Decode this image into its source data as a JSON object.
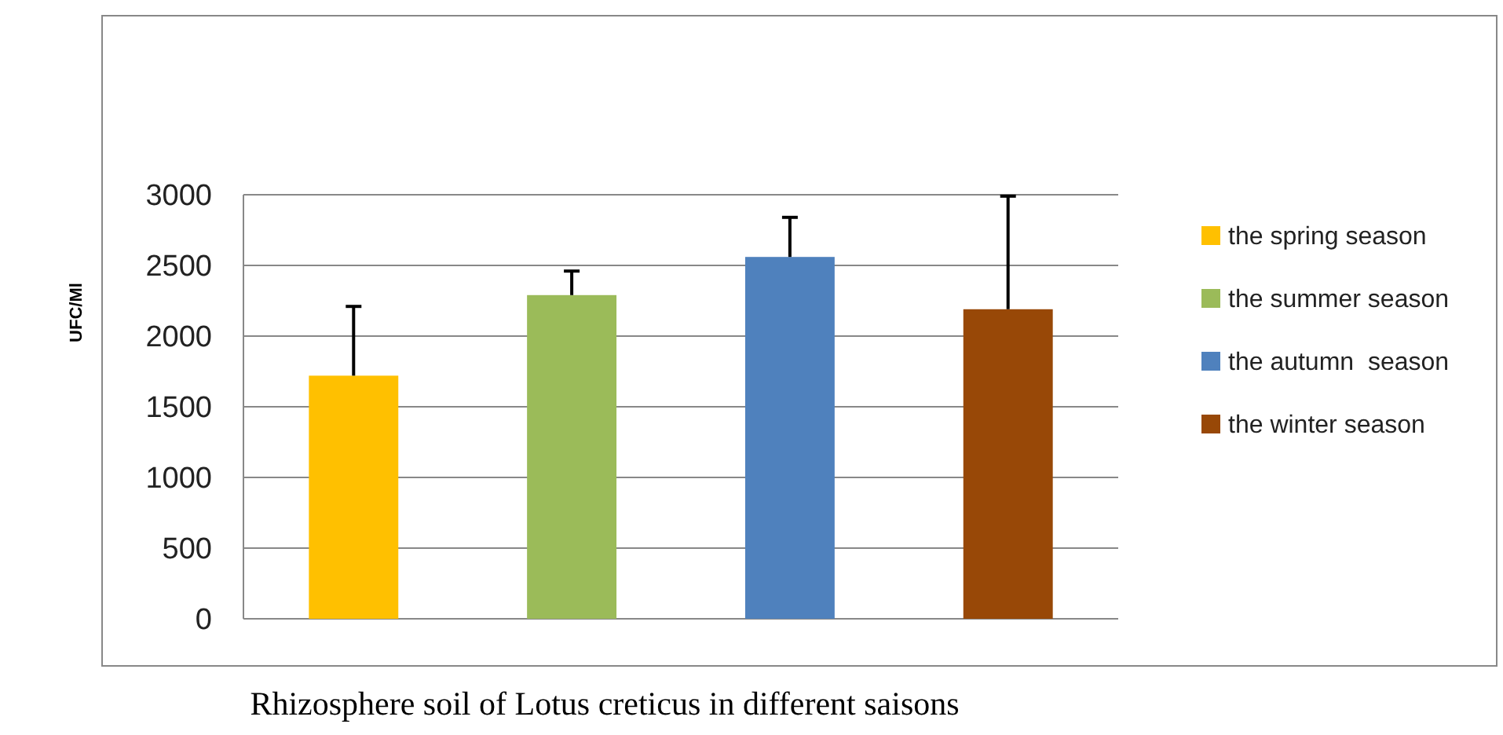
{
  "chart_data": {
    "type": "bar",
    "title": "Rhizosphere soil of Lotus creticus in different saisons",
    "ylabel": "UFC/Ml",
    "categories": [
      null,
      null,
      null,
      null
    ],
    "series": [
      {
        "name": "the spring season",
        "color": "#ffc000",
        "values": [
          1720,
          null,
          null,
          null
        ],
        "errors": [
          [
            1720,
            2210
          ],
          null,
          null,
          null
        ]
      },
      {
        "name": "the summer season",
        "color": "#9bbb59",
        "values": [
          null,
          2290,
          null,
          null
        ],
        "errors": [
          null,
          [
            2290,
            2460
          ],
          null,
          null
        ]
      },
      {
        "name": "the autumn  season",
        "color": "#4f81bd",
        "values": [
          null,
          null,
          2560,
          null
        ],
        "errors": [
          null,
          null,
          [
            2560,
            2840
          ],
          null
        ]
      },
      {
        "name": "the winter season",
        "color": "#984807",
        "values": [
          null,
          null,
          null,
          2190
        ],
        "errors": [
          null,
          null,
          null,
          [
            2190,
            2990
          ]
        ]
      }
    ],
    "ylim": [
      0,
      3000
    ],
    "yticks": [
      0,
      500,
      1000,
      1500,
      2000,
      2500,
      3000
    ],
    "grid": "y",
    "legend": "right"
  }
}
